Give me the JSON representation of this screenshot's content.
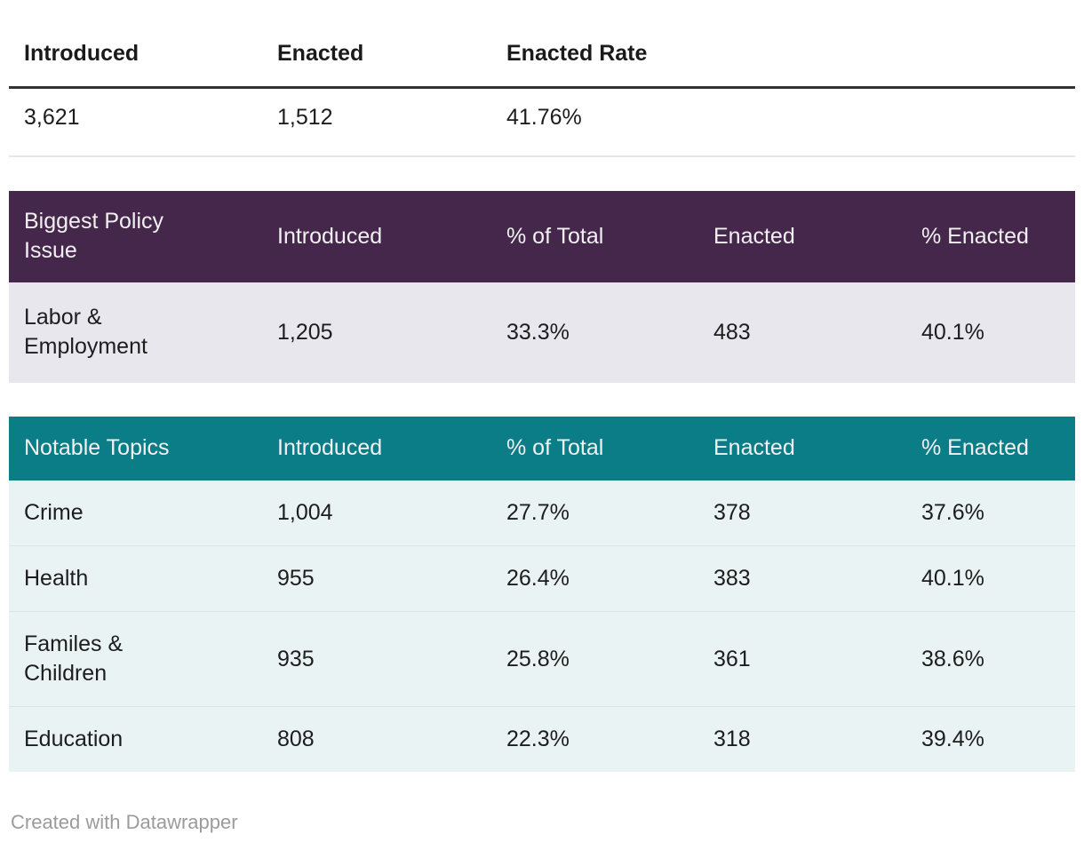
{
  "chart_data": [
    {
      "type": "table",
      "name": "summary",
      "columns": [
        "Introduced",
        "Enacted",
        "Enacted Rate"
      ],
      "rows": [
        [
          "3,621",
          "1,512",
          "41.76%"
        ]
      ]
    },
    {
      "type": "table",
      "name": "biggest-policy-issue",
      "columns": [
        "Biggest Policy Issue",
        "Introduced",
        "% of Total",
        "Enacted",
        "% Enacted"
      ],
      "rows": [
        [
          "Labor & Employment",
          "1,205",
          "33.3%",
          "483",
          "40.1%"
        ]
      ]
    },
    {
      "type": "table",
      "name": "notable-topics",
      "columns": [
        "Notable Topics",
        "Introduced",
        "% of Total",
        "Enacted",
        "% Enacted"
      ],
      "rows": [
        [
          "Crime",
          "1,004",
          "27.7%",
          "378",
          "37.6%"
        ],
        [
          "Health",
          "955",
          "26.4%",
          "383",
          "40.1%"
        ],
        [
          "Familes & Children",
          "935",
          "25.8%",
          "361",
          "38.6%"
        ],
        [
          "Education",
          "808",
          "22.3%",
          "318",
          "39.4%"
        ]
      ]
    }
  ],
  "footer": {
    "credit": "Created with Datawrapper"
  },
  "colors": {
    "plum": "#44274a",
    "plum-row": "#e9e7ee",
    "teal": "#0a7d86",
    "teal-row": "#e9f3f4",
    "rule-dark": "#333333",
    "rule-light": "#e8e8e8",
    "credit": "#9b9b9b"
  }
}
